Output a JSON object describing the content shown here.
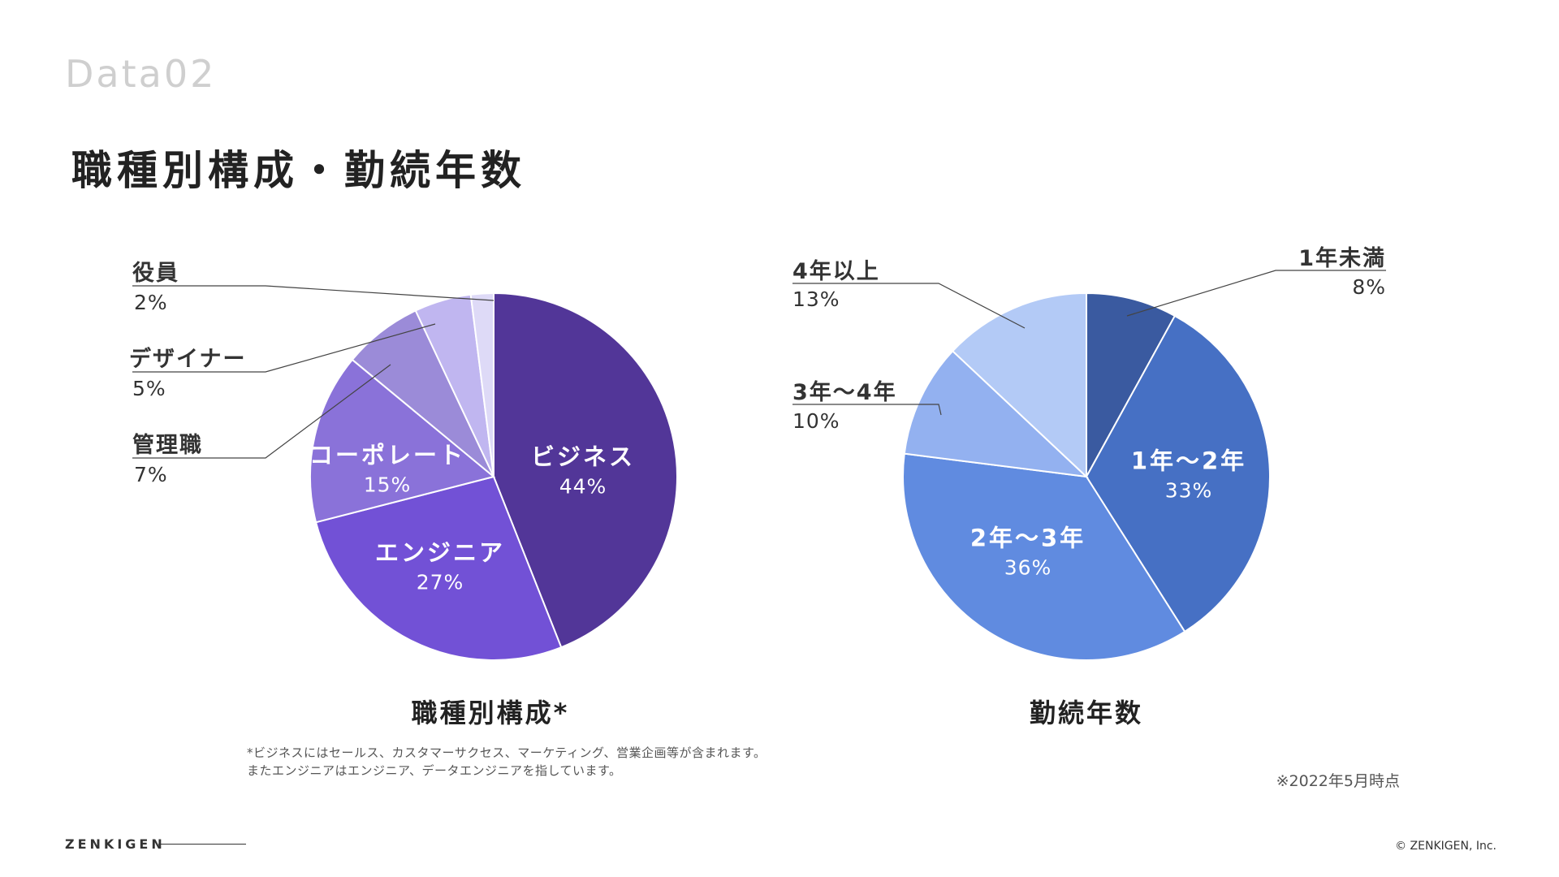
{
  "section_tag": "Data02",
  "main_title": "職種別構成・勤続年数",
  "chart_data": [
    {
      "type": "pie",
      "title": "職種別構成*",
      "slices": [
        {
          "label": "ビジネス",
          "value": 44,
          "pct": "44%",
          "color": "#523698",
          "label_pos": "inside"
        },
        {
          "label": "エンジニア",
          "value": 27,
          "pct": "27%",
          "color": "#7251d6",
          "label_pos": "inside"
        },
        {
          "label": "コーポレート",
          "value": 15,
          "pct": "15%",
          "color": "#8a72d9",
          "label_pos": "inside"
        },
        {
          "label": "管理職",
          "value": 7,
          "pct": "7%",
          "color": "#9b8bd8",
          "label_pos": "callout-left"
        },
        {
          "label": "デザイナー",
          "value": 5,
          "pct": "5%",
          "color": "#c0b6f0",
          "label_pos": "callout-left"
        },
        {
          "label": "役員",
          "value": 2,
          "pct": "2%",
          "color": "#dedaf7",
          "label_pos": "callout-left"
        }
      ]
    },
    {
      "type": "pie",
      "title": "勤続年数",
      "slices": [
        {
          "label": "1年未満",
          "value": 8,
          "pct": "8%",
          "color": "#3a5aa0",
          "label_pos": "callout-right"
        },
        {
          "label": "1年～2年",
          "value": 33,
          "pct": "33%",
          "color": "#4670c4",
          "label_pos": "inside"
        },
        {
          "label": "2年～3年",
          "value": 36,
          "pct": "36%",
          "color": "#608be0",
          "label_pos": "inside"
        },
        {
          "label": "3年～4年",
          "value": 10,
          "pct": "10%",
          "color": "#93b1f0",
          "label_pos": "callout-left"
        },
        {
          "label": "4年以上",
          "value": 13,
          "pct": "13%",
          "color": "#b3caf6",
          "label_pos": "callout-left"
        }
      ]
    }
  ],
  "footnote": "*ビジネスにはセールス、カスタマーサクセス、マーケティング、営業企画等が含まれます。またエンジニアはエンジニア、データエンジニアを指しています。",
  "as_of": "※2022年5月時点",
  "brand": "ZENKIGEN",
  "copyright": "© ZENKIGEN, Inc."
}
